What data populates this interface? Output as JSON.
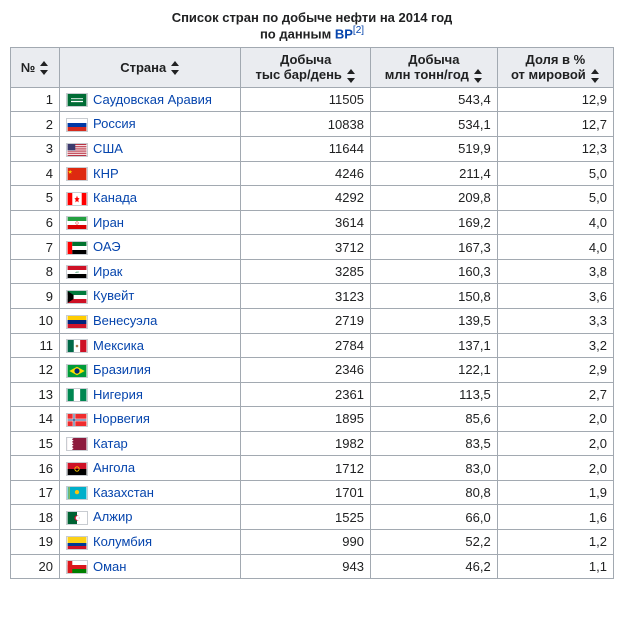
{
  "title": {
    "line1": "Список стран по добыче нефти на 2014 год",
    "line2_prefix": "по данным ",
    "line2_link": "BP",
    "line2_ref": "[2]"
  },
  "columns": {
    "rank": "№",
    "country": "Страна",
    "barrels": "Добыча тыс бар/день",
    "tons": "Добыча млн тонн/год",
    "share": "Доля в % от мировой"
  },
  "rows": [
    {
      "rank": "1",
      "country": "Саудовская Аравия",
      "flag": "sa",
      "barrels": "11505",
      "tons": "543,4",
      "share": "12,9"
    },
    {
      "rank": "2",
      "country": "Россия",
      "flag": "ru",
      "barrels": "10838",
      "tons": "534,1",
      "share": "12,7"
    },
    {
      "rank": "3",
      "country": "США",
      "flag": "us",
      "barrels": "11644",
      "tons": "519,9",
      "share": "12,3"
    },
    {
      "rank": "4",
      "country": "КНР",
      "flag": "cn",
      "barrels": "4246",
      "tons": "211,4",
      "share": "5,0"
    },
    {
      "rank": "5",
      "country": "Канада",
      "flag": "ca",
      "barrels": "4292",
      "tons": "209,8",
      "share": "5,0"
    },
    {
      "rank": "6",
      "country": "Иран",
      "flag": "ir",
      "barrels": "3614",
      "tons": "169,2",
      "share": "4,0"
    },
    {
      "rank": "7",
      "country": "ОАЭ",
      "flag": "ae",
      "barrels": "3712",
      "tons": "167,3",
      "share": "4,0"
    },
    {
      "rank": "8",
      "country": "Ирак",
      "flag": "iq",
      "barrels": "3285",
      "tons": "160,3",
      "share": "3,8"
    },
    {
      "rank": "9",
      "country": "Кувейт",
      "flag": "kw",
      "barrels": "3123",
      "tons": "150,8",
      "share": "3,6"
    },
    {
      "rank": "10",
      "country": "Венесуэла",
      "flag": "ve",
      "barrels": "2719",
      "tons": "139,5",
      "share": "3,3"
    },
    {
      "rank": "11",
      "country": "Мексика",
      "flag": "mx",
      "barrels": "2784",
      "tons": "137,1",
      "share": "3,2"
    },
    {
      "rank": "12",
      "country": "Бразилия",
      "flag": "br",
      "barrels": "2346",
      "tons": "122,1",
      "share": "2,9"
    },
    {
      "rank": "13",
      "country": "Нигерия",
      "flag": "ng",
      "barrels": "2361",
      "tons": "113,5",
      "share": "2,7"
    },
    {
      "rank": "14",
      "country": "Норвегия",
      "flag": "no",
      "barrels": "1895",
      "tons": "85,6",
      "share": "2,0"
    },
    {
      "rank": "15",
      "country": "Катар",
      "flag": "qa",
      "barrels": "1982",
      "tons": "83,5",
      "share": "2,0"
    },
    {
      "rank": "16",
      "country": "Ангола",
      "flag": "ao",
      "barrels": "1712",
      "tons": "83,0",
      "share": "2,0"
    },
    {
      "rank": "17",
      "country": "Казахстан",
      "flag": "kz",
      "barrels": "1701",
      "tons": "80,8",
      "share": "1,9"
    },
    {
      "rank": "18",
      "country": "Алжир",
      "flag": "dz",
      "barrels": "1525",
      "tons": "66,0",
      "share": "1,6"
    },
    {
      "rank": "19",
      "country": "Колумбия",
      "flag": "co",
      "barrels": "990",
      "tons": "52,2",
      "share": "1,2"
    },
    {
      "rank": "20",
      "country": "Оман",
      "flag": "om",
      "barrels": "943",
      "tons": "46,2",
      "share": "1,1"
    }
  ]
}
